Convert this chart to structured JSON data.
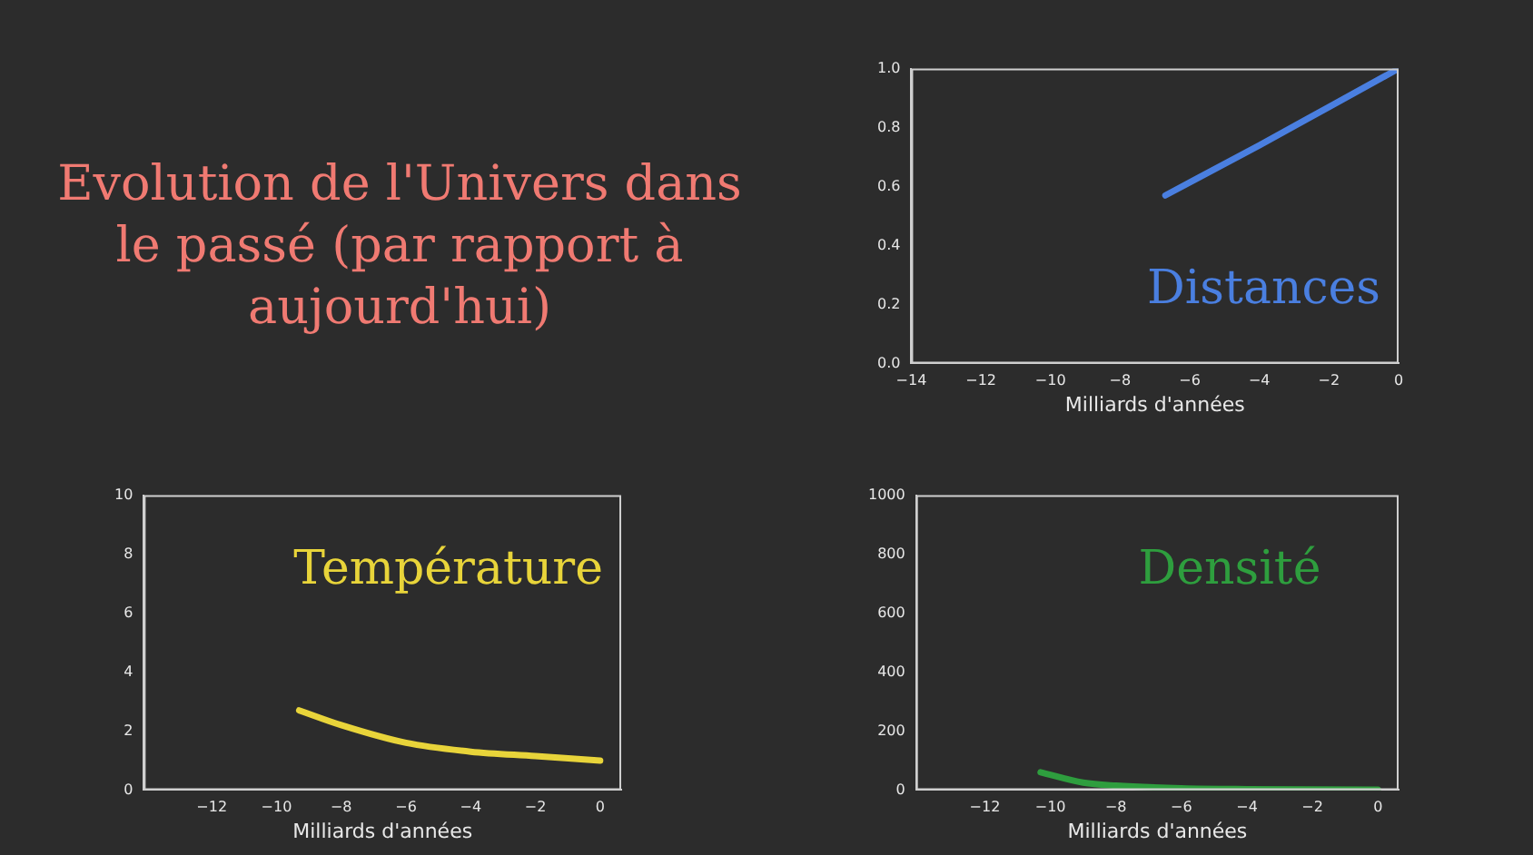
{
  "chart_data": [
    {
      "type": "other",
      "title": "Evolution de l'Univers dans le passé (par rapport à aujourd'hui)"
    },
    {
      "type": "line",
      "title": "Distances",
      "xlabel": "Milliards d'années",
      "xlim": [
        -14,
        0
      ],
      "xticks": [
        -14,
        -12,
        -10,
        -8,
        -6,
        -4,
        -2,
        0
      ],
      "ylim": [
        0,
        1
      ],
      "yticks": [
        {
          "value": 0,
          "label": "0.0"
        },
        {
          "value": 0.2,
          "label": "0.2"
        },
        {
          "value": 0.4,
          "label": "0.4"
        },
        {
          "value": 0.6,
          "label": "0.6"
        },
        {
          "value": 0.8,
          "label": "0.8"
        },
        {
          "value": 1,
          "label": "1.0"
        }
      ],
      "grid": false,
      "x": [
        -6.7,
        -4,
        -2,
        0
      ],
      "series": [
        {
          "color": "#4a7fe0",
          "values": [
            0.57,
            0.74,
            0.87,
            1.0
          ]
        }
      ]
    },
    {
      "type": "line",
      "title": "Température",
      "xlabel": "Milliards d'années",
      "xlim": [
        -14.1,
        0.65
      ],
      "xticks": [
        -12,
        -10,
        -8,
        -6,
        -4,
        -2,
        0
      ],
      "ylim": [
        0,
        10
      ],
      "yticks": [
        0,
        2,
        4,
        6,
        8,
        10
      ],
      "grid": false,
      "x": [
        -9.3,
        -8,
        -6,
        -4,
        -2,
        0
      ],
      "series": [
        {
          "color": "#e8d43a",
          "values": [
            2.7,
            2.2,
            1.6,
            1.3,
            1.15,
            1.0
          ]
        }
      ]
    },
    {
      "type": "line",
      "title": "Densité",
      "xlabel": "Milliards d'années",
      "xlim": [
        -14.1,
        0.63
      ],
      "xticks": [
        -12,
        -10,
        -8,
        -6,
        -4,
        -2,
        0
      ],
      "ylim": [
        0,
        1000
      ],
      "yticks": [
        0,
        200,
        400,
        600,
        800,
        1000
      ],
      "grid": false,
      "x": [
        -10.3,
        -9,
        -8,
        -6,
        -4,
        0
      ],
      "series": [
        {
          "color": "#2e9e3e",
          "values": [
            60,
            25,
            15,
            6,
            3,
            1
          ]
        }
      ]
    }
  ]
}
